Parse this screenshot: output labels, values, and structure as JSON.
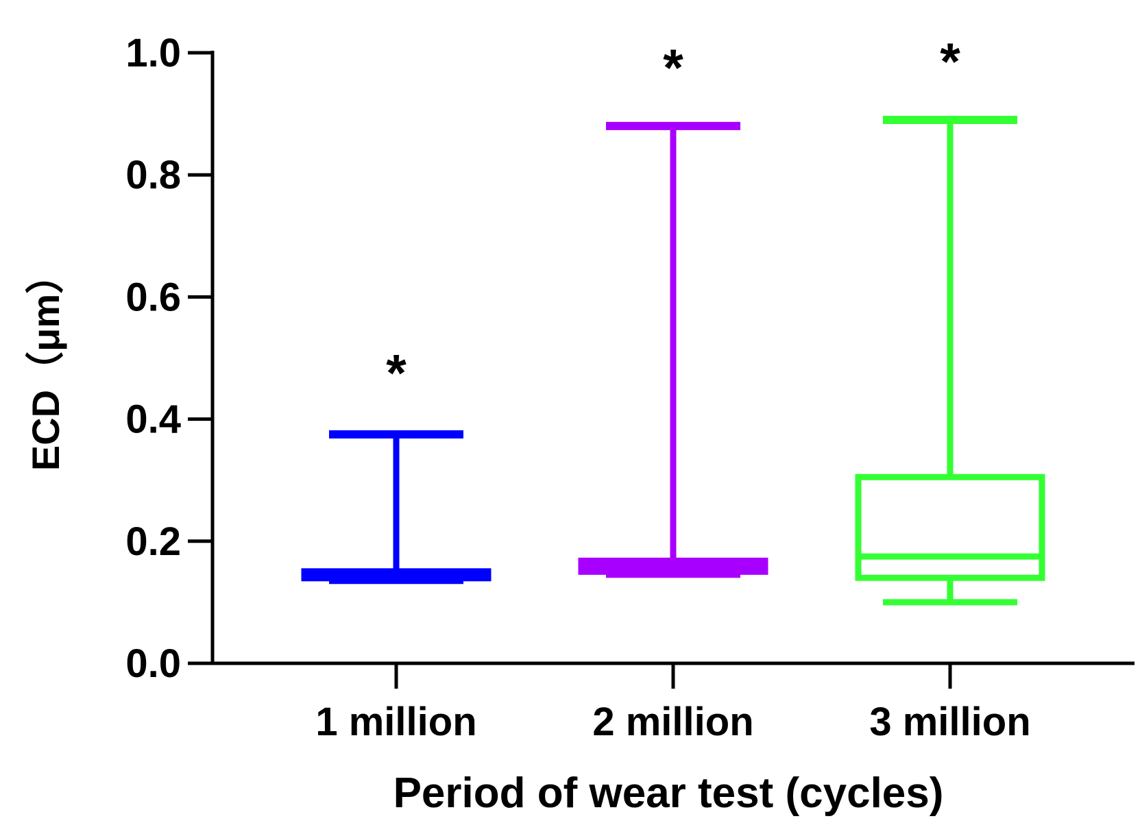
{
  "chart_data": {
    "type": "boxplot",
    "title": "",
    "xlabel": "Period of wear test (cycles)",
    "ylabel": "ECD（μm）",
    "ylim": [
      0,
      1.0
    ],
    "yticks": [
      "0.0",
      "0.2",
      "0.4",
      "0.6",
      "0.8",
      "1.0"
    ],
    "ytick_values": [
      0.0,
      0.2,
      0.4,
      0.6,
      0.8,
      1.0
    ],
    "categories": [
      "1 million",
      "2 million",
      "3 million"
    ],
    "series": [
      {
        "name": "1 million",
        "color": "#0000ff",
        "min": 0.135,
        "q1": 0.14,
        "median": 0.145,
        "q3": 0.15,
        "max": 0.375,
        "annotation": "*",
        "annotation_value": 0.5
      },
      {
        "name": "2 million",
        "color": "#a800ff",
        "min": 0.145,
        "q1": 0.15,
        "median": 0.16,
        "q3": 0.168,
        "max": 0.88,
        "annotation": "*",
        "annotation_value": 1.0
      },
      {
        "name": "3 million",
        "color": "#33ff33",
        "min": 0.1,
        "q1": 0.14,
        "median": 0.175,
        "q3": 0.305,
        "max": 0.89,
        "annotation": "*",
        "annotation_value": 1.01
      }
    ]
  }
}
